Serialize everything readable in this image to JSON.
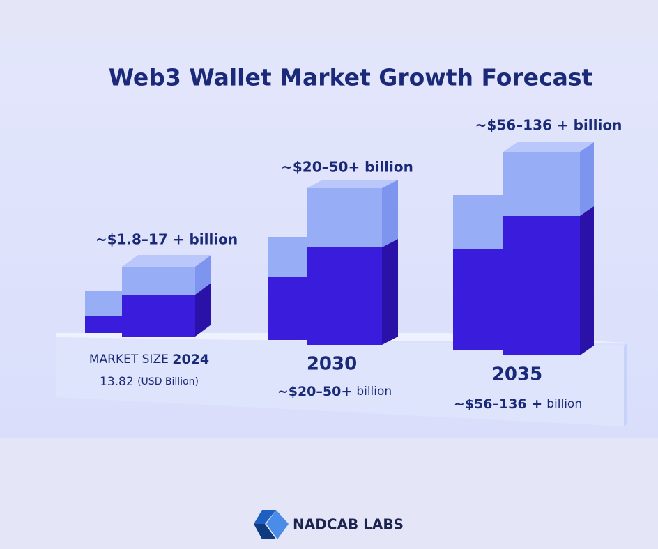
{
  "title": "Web3 Wallet Market Growth Forecast",
  "groups": [
    {
      "top_label": "~$1.8–17 + billion",
      "caption_prefix": "MARKET SIZE",
      "year": "2024",
      "value": "13.82",
      "unit": "(USD Billion)"
    },
    {
      "top_label": "~$20–50+ billion",
      "year": "2030",
      "value": "~$20–50+",
      "unit": "billion"
    },
    {
      "top_label": "~$56–136 + billion",
      "year": "2035",
      "value": "~$56–136 +",
      "unit": "billion"
    }
  ],
  "logo": {
    "text": "NADCAB LABS"
  }
}
